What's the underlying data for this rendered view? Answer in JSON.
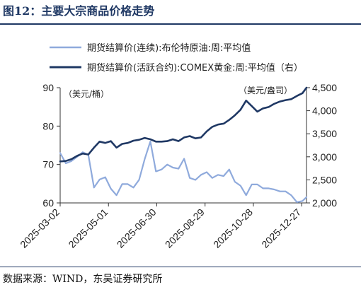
{
  "header": {
    "title": "图12：主要大宗商品价格走势"
  },
  "footer": {
    "source": "数据来源：WIND，东吴证券研究所"
  },
  "chart_data": {
    "type": "line",
    "title": "",
    "x_tick_labels": [
      "2025-03-02",
      "2025-05-01",
      "2025-06-30",
      "2025-08-29",
      "2025-10-28",
      "2025-12-27"
    ],
    "x_range": [
      "2025-03-02",
      "2026-01-02"
    ],
    "left_axis": {
      "unit": "（美元/桶）",
      "ylim": [
        60,
        90
      ],
      "ticks": [
        60,
        70,
        80,
        90
      ]
    },
    "right_axis": {
      "unit": "（美元/盎司）",
      "ylim": [
        2000,
        4500
      ],
      "ticks": [
        2000,
        2500,
        3000,
        3500,
        4000,
        4500
      ],
      "tick_labels": [
        "2,000",
        "2,500",
        "3,000",
        "3,500",
        "4,000",
        "4,500"
      ]
    },
    "legend_position": "top",
    "grid": false,
    "series": [
      {
        "name": "期货结算价(连续):布伦特原油:周:平均值",
        "axis": "left",
        "color": "#8faadc",
        "points": [
          [
            "2025-03-02",
            73.0
          ],
          [
            "2025-03-09",
            70.3
          ],
          [
            "2025-03-16",
            70.9
          ],
          [
            "2025-03-23",
            72.0
          ],
          [
            "2025-03-30",
            73.2
          ],
          [
            "2025-04-06",
            72.5
          ],
          [
            "2025-04-13",
            64.0
          ],
          [
            "2025-04-20",
            66.1
          ],
          [
            "2025-04-27",
            66.7
          ],
          [
            "2025-05-04",
            63.7
          ],
          [
            "2025-05-11",
            62.0
          ],
          [
            "2025-05-18",
            64.9
          ],
          [
            "2025-05-25",
            64.9
          ],
          [
            "2025-06-01",
            64.0
          ],
          [
            "2025-06-08",
            66.0
          ],
          [
            "2025-06-15",
            71.4
          ],
          [
            "2025-06-22",
            76.0
          ],
          [
            "2025-06-29",
            68.2
          ],
          [
            "2025-07-06",
            68.7
          ],
          [
            "2025-07-13",
            70.0
          ],
          [
            "2025-07-20",
            69.2
          ],
          [
            "2025-07-27",
            68.9
          ],
          [
            "2025-08-03",
            71.5
          ],
          [
            "2025-08-10",
            66.5
          ],
          [
            "2025-08-17",
            66.0
          ],
          [
            "2025-08-24",
            67.3
          ],
          [
            "2025-08-31",
            68.0
          ],
          [
            "2025-09-07",
            66.5
          ],
          [
            "2025-09-14",
            67.3
          ],
          [
            "2025-09-21",
            67.0
          ],
          [
            "2025-09-28",
            68.7
          ],
          [
            "2025-10-05",
            65.5
          ],
          [
            "2025-10-12",
            64.5
          ],
          [
            "2025-10-19",
            62.0
          ],
          [
            "2025-10-26",
            64.8
          ],
          [
            "2025-11-02",
            64.8
          ],
          [
            "2025-11-09",
            63.8
          ],
          [
            "2025-11-16",
            63.8
          ],
          [
            "2025-11-23",
            63.5
          ],
          [
            "2025-11-30",
            63.0
          ],
          [
            "2025-12-07",
            63.0
          ],
          [
            "2025-12-14",
            62.0
          ],
          [
            "2025-12-21",
            60.2
          ],
          [
            "2025-12-28",
            60.5
          ],
          [
            "2026-01-02",
            61.5
          ]
        ]
      },
      {
        "name": "期货结算价(活跃合约):COMEX黄金:周:平均值（右）",
        "axis": "right",
        "color": "#1f3864",
        "points": [
          [
            "2025-03-02",
            2900
          ],
          [
            "2025-03-09",
            2910
          ],
          [
            "2025-03-16",
            2950
          ],
          [
            "2025-03-23",
            3020
          ],
          [
            "2025-03-30",
            3070
          ],
          [
            "2025-04-06",
            3050
          ],
          [
            "2025-04-13",
            3200
          ],
          [
            "2025-04-20",
            3330
          ],
          [
            "2025-04-27",
            3300
          ],
          [
            "2025-05-04",
            3340
          ],
          [
            "2025-05-11",
            3200
          ],
          [
            "2025-05-18",
            3280
          ],
          [
            "2025-05-25",
            3300
          ],
          [
            "2025-06-01",
            3350
          ],
          [
            "2025-06-08",
            3370
          ],
          [
            "2025-06-15",
            3410
          ],
          [
            "2025-06-22",
            3380
          ],
          [
            "2025-06-29",
            3330
          ],
          [
            "2025-07-06",
            3330
          ],
          [
            "2025-07-13",
            3340
          ],
          [
            "2025-07-20",
            3380
          ],
          [
            "2025-07-27",
            3340
          ],
          [
            "2025-08-03",
            3420
          ],
          [
            "2025-08-10",
            3450
          ],
          [
            "2025-08-17",
            3400
          ],
          [
            "2025-08-24",
            3420
          ],
          [
            "2025-08-31",
            3550
          ],
          [
            "2025-09-07",
            3650
          ],
          [
            "2025-09-14",
            3700
          ],
          [
            "2025-09-21",
            3720
          ],
          [
            "2025-09-28",
            3800
          ],
          [
            "2025-10-05",
            3900
          ],
          [
            "2025-10-12",
            4020
          ],
          [
            "2025-10-19",
            4220
          ],
          [
            "2025-10-26",
            4100
          ],
          [
            "2025-11-02",
            3980
          ],
          [
            "2025-11-09",
            4050
          ],
          [
            "2025-11-16",
            4080
          ],
          [
            "2025-11-23",
            4150
          ],
          [
            "2025-11-30",
            4200
          ],
          [
            "2025-12-07",
            4230
          ],
          [
            "2025-12-14",
            4250
          ],
          [
            "2025-12-21",
            4320
          ],
          [
            "2025-12-28",
            4380
          ],
          [
            "2026-01-02",
            4500
          ]
        ]
      }
    ]
  }
}
